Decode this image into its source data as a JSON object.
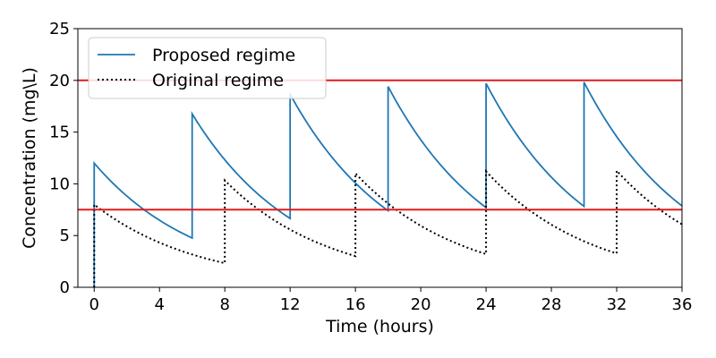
{
  "chart_data": {
    "type": "line",
    "xlabel": "Time (hours)",
    "ylabel": "Concentration (mg\\L)",
    "xlim": [
      -1,
      36
    ],
    "ylim": [
      0,
      25
    ],
    "xticks": [
      0,
      4,
      8,
      12,
      16,
      20,
      24,
      28,
      32,
      36
    ],
    "yticks": [
      0,
      5,
      10,
      15,
      20,
      25
    ],
    "grid": false,
    "legend_position": "top-left",
    "horizontal_lines": [
      {
        "y": 20,
        "color": "#e41a1c"
      },
      {
        "y": 7.5,
        "color": "#e41a1c"
      }
    ],
    "series": [
      {
        "name": "Proposed regime",
        "color": "#1f77b4",
        "style": "solid",
        "dose_times": [
          0,
          6,
          12,
          18,
          24,
          30
        ],
        "dose_increment": 12,
        "elimination_rate": 0.154,
        "start_value": 0,
        "x_end": 36
      },
      {
        "name": "Original regime",
        "color": "#000000",
        "style": "dotted",
        "dose_times": [
          0,
          8,
          16,
          24,
          32
        ],
        "dose_increment": 8,
        "elimination_rate": 0.154,
        "start_value": 0,
        "x_end": 36
      }
    ]
  }
}
